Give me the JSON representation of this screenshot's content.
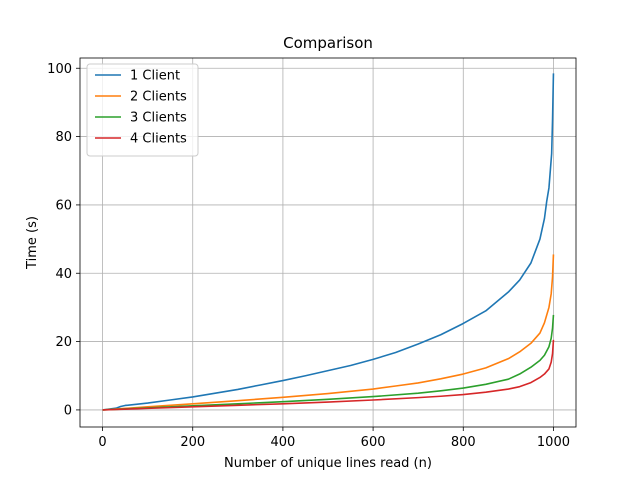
{
  "chart_data": {
    "type": "line",
    "title": "Comparison",
    "xlabel": "Number of unique lines read (n)",
    "ylabel": "Time (s)",
    "xlim": [
      -50,
      1050
    ],
    "ylim": [
      -5,
      103
    ],
    "xticks": [
      0,
      200,
      400,
      600,
      800,
      1000
    ],
    "yticks": [
      0,
      20,
      40,
      60,
      80,
      100
    ],
    "grid": true,
    "legend_position": "upper left",
    "series": [
      {
        "name": "1 Client",
        "color": "#1f77b4",
        "x": [
          0,
          30,
          40,
          50,
          100,
          150,
          200,
          250,
          300,
          350,
          400,
          450,
          500,
          550,
          600,
          650,
          700,
          750,
          800,
          850,
          900,
          925,
          950,
          960,
          970,
          975,
          980,
          985,
          990,
          993,
          996,
          998,
          1000
        ],
        "y": [
          0,
          0.5,
          1.0,
          1.3,
          2.0,
          2.9,
          3.8,
          4.9,
          6.0,
          7.3,
          8.6,
          10.0,
          11.5,
          13.0,
          14.8,
          16.8,
          19.3,
          22.0,
          25.3,
          29.0,
          34.5,
          38.0,
          43.0,
          46.5,
          50.0,
          53.0,
          56.0,
          61.0,
          65.0,
          70.0,
          75.0,
          85.0,
          98.5
        ]
      },
      {
        "name": "2 Clients",
        "color": "#ff7f0e",
        "x": [
          0,
          100,
          200,
          300,
          400,
          500,
          600,
          650,
          700,
          750,
          800,
          850,
          900,
          925,
          950,
          970,
          980,
          990,
          995,
          998,
          1000
        ],
        "y": [
          0,
          0.9,
          1.8,
          2.7,
          3.7,
          4.8,
          6.1,
          7.0,
          7.9,
          9.1,
          10.5,
          12.3,
          15.0,
          17.0,
          19.5,
          22.5,
          25.5,
          30.0,
          34.0,
          39.0,
          45.5
        ]
      },
      {
        "name": "3 Clients",
        "color": "#2ca02c",
        "x": [
          0,
          100,
          200,
          300,
          400,
          500,
          600,
          700,
          750,
          800,
          850,
          900,
          925,
          950,
          970,
          980,
          990,
          995,
          998,
          1000
        ],
        "y": [
          0,
          0.6,
          1.2,
          1.8,
          2.4,
          3.1,
          3.9,
          4.9,
          5.6,
          6.4,
          7.5,
          9.0,
          10.5,
          12.5,
          14.5,
          16.0,
          18.5,
          21.0,
          24.0,
          27.8
        ]
      },
      {
        "name": "4 Clients",
        "color": "#d62728",
        "x": [
          0,
          100,
          200,
          300,
          400,
          500,
          600,
          700,
          750,
          800,
          850,
          900,
          925,
          950,
          970,
          980,
          990,
          995,
          998,
          1000
        ],
        "y": [
          0,
          0.45,
          0.9,
          1.35,
          1.8,
          2.3,
          2.9,
          3.6,
          4.0,
          4.5,
          5.2,
          6.1,
          6.8,
          8.0,
          9.5,
          10.5,
          12.0,
          14.0,
          16.5,
          20.5
        ]
      }
    ]
  }
}
